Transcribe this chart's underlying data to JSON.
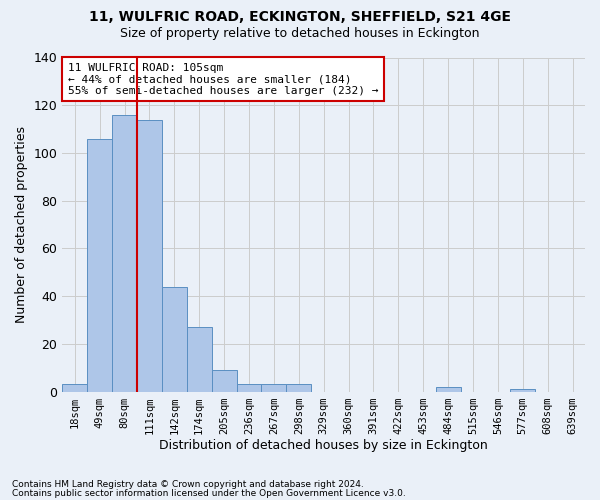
{
  "title1": "11, WULFRIC ROAD, ECKINGTON, SHEFFIELD, S21 4GE",
  "title2": "Size of property relative to detached houses in Eckington",
  "xlabel": "Distribution of detached houses by size in Eckington",
  "ylabel": "Number of detached properties",
  "footer1": "Contains HM Land Registry data © Crown copyright and database right 2024.",
  "footer2": "Contains public sector information licensed under the Open Government Licence v3.0.",
  "bin_labels": [
    "18sqm",
    "49sqm",
    "80sqm",
    "111sqm",
    "142sqm",
    "174sqm",
    "205sqm",
    "236sqm",
    "267sqm",
    "298sqm",
    "329sqm",
    "360sqm",
    "391sqm",
    "422sqm",
    "453sqm",
    "484sqm",
    "515sqm",
    "546sqm",
    "577sqm",
    "608sqm",
    "639sqm"
  ],
  "bar_heights": [
    3,
    106,
    116,
    114,
    44,
    27,
    9,
    3,
    3,
    3,
    0,
    0,
    0,
    0,
    0,
    2,
    0,
    0,
    1,
    0,
    0
  ],
  "bar_color": "#aec6e8",
  "bar_edge_color": "#5a8fc2",
  "grid_color": "#cccccc",
  "bg_color": "#eaf0f8",
  "vline_x_idx": 3,
  "vline_color": "#cc0000",
  "annotation_text": "11 WULFRIC ROAD: 105sqm\n← 44% of detached houses are smaller (184)\n55% of semi-detached houses are larger (232) →",
  "annotation_box_color": "#ffffff",
  "annotation_box_edge": "#cc0000",
  "ylim": [
    0,
    140
  ],
  "yticks": [
    0,
    20,
    40,
    60,
    80,
    100,
    120,
    140
  ]
}
